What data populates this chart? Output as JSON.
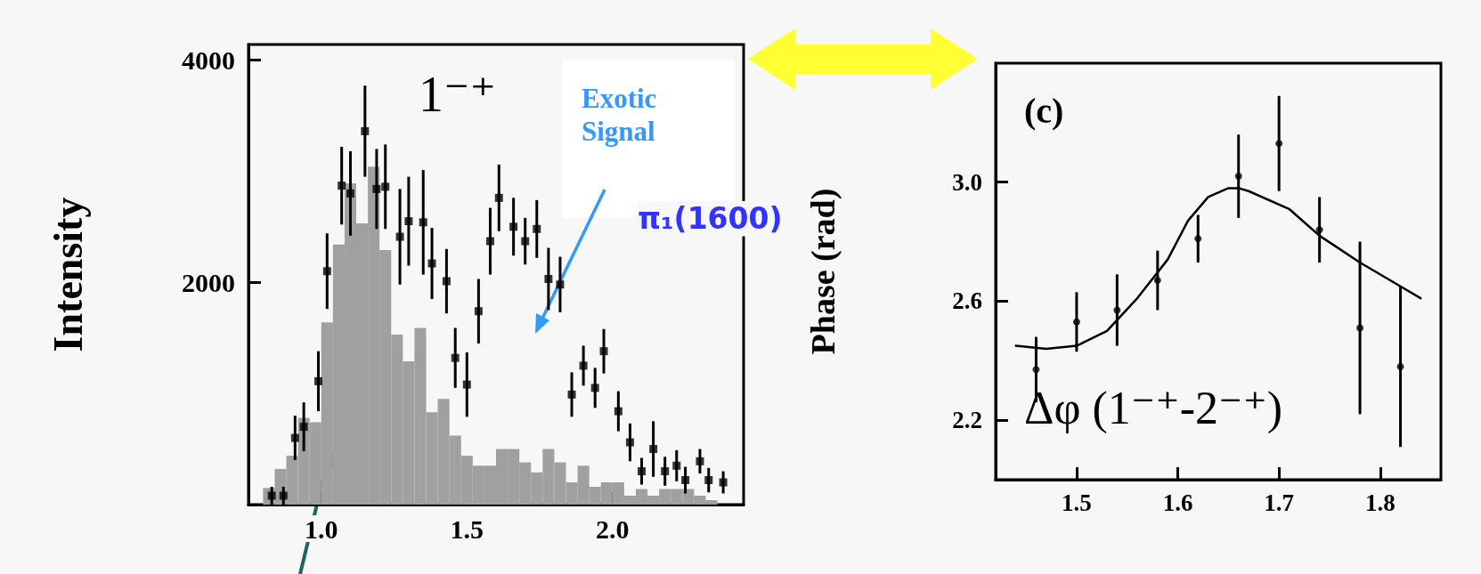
{
  "chart_data": [
    {
      "type": "histogram",
      "ylabel": "Intensity",
      "xlim": [
        0.75,
        2.45
      ],
      "ylim": [
        0,
        4140
      ],
      "xticks": [
        {
          "value": 1,
          "label": "1.0"
        },
        1.5,
        {
          "value": 2,
          "label": "2.0"
        }
      ],
      "yticks": [
        2000,
        4000
      ],
      "annotations": [
        "1⁻⁺",
        "Exotic Signal",
        "π₁(1600)"
      ],
      "series": [
        {
          "color": "#a0a0a0",
          "bins": [
            0.8,
            0.84,
            0.88,
            0.92,
            0.96,
            1.0,
            1.04,
            1.08,
            1.12,
            1.16,
            1.2,
            1.24,
            1.28,
            1.32,
            1.36,
            1.4,
            1.44,
            1.48,
            1.52,
            1.56,
            1.6,
            1.64,
            1.68,
            1.72,
            1.76,
            1.8,
            1.84,
            1.88,
            1.92,
            1.96,
            2.0,
            2.04,
            2.08,
            2.12,
            2.16,
            2.2,
            2.24,
            2.28,
            2.32,
            2.36
          ],
          "values": [
            150,
            320,
            440,
            780,
            740,
            1640,
            2340,
            2890,
            2530,
            3040,
            2290,
            1530,
            1290,
            1590,
            830,
            950,
            620,
            440,
            350,
            350,
            500,
            500,
            380,
            290,
            500,
            380,
            200,
            350,
            160,
            200,
            200,
            80,
            140,
            80,
            140,
            140,
            140,
            80,
            40
          ]
        },
        {
          "type": "scatter",
          "color": "#000000",
          "marker": "square",
          "x": [
            0.83,
            0.87,
            0.91,
            0.94,
            0.99,
            1.02,
            1.07,
            1.1,
            1.15,
            1.19,
            1.22,
            1.27,
            1.3,
            1.35,
            1.38,
            1.43,
            1.46,
            1.5,
            1.54,
            1.58,
            1.61,
            1.66,
            1.7,
            1.74,
            1.78,
            1.82,
            1.86,
            1.9,
            1.94,
            1.97,
            2.02,
            2.06,
            2.1,
            2.14,
            2.18,
            2.22,
            2.25,
            2.3,
            2.33,
            2.38
          ],
          "values": [
            80,
            80,
            600,
            700,
            1110,
            2100,
            2870,
            2800,
            3360,
            2840,
            2860,
            2410,
            2550,
            2540,
            2170,
            2010,
            1320,
            1080,
            1740,
            2370,
            2760,
            2500,
            2370,
            2480,
            2030,
            1980,
            990,
            1250,
            1050,
            1380,
            840,
            560,
            300,
            500,
            300,
            350,
            220,
            390,
            220,
            200
          ],
          "errors": [
            80,
            80,
            200,
            220,
            270,
            340,
            350,
            380,
            410,
            360,
            380,
            430,
            400,
            470,
            320,
            290,
            270,
            290,
            290,
            300,
            300,
            260,
            210,
            260,
            280,
            250,
            200,
            180,
            180,
            200,
            180,
            170,
            120,
            250,
            130,
            140,
            120,
            110,
            110,
            100
          ]
        }
      ]
    },
    {
      "type": "scatter",
      "ylabel": "Phase (rad)",
      "xlim": [
        1.42,
        1.86
      ],
      "ylim": [
        2.0,
        3.4
      ],
      "xticks": [
        1.5,
        1.6,
        1.7,
        1.8
      ],
      "yticks": [
        {
          "value": 2.2,
          "label": "2.2"
        },
        {
          "value": 2.6,
          "label": "2.6"
        },
        {
          "value": 3,
          "label": "3.0"
        }
      ],
      "annotations": [
        "(c)",
        "Δφ (1⁻⁺-2⁻⁺)"
      ],
      "series": [
        {
          "color": "#000000",
          "marker": "circle",
          "x": [
            1.46,
            1.5,
            1.54,
            1.58,
            1.62,
            1.66,
            1.7,
            1.74,
            1.78,
            1.82
          ],
          "values": [
            2.37,
            2.53,
            2.57,
            2.67,
            2.81,
            3.02,
            3.13,
            2.84,
            2.51,
            2.38
          ],
          "errors": [
            0.11,
            0.1,
            0.12,
            0.1,
            0.08,
            0.14,
            0.16,
            0.11,
            0.29,
            0.27
          ]
        },
        {
          "type": "line",
          "color": "#000000",
          "marker": "none",
          "line_style": "solid",
          "x": [
            1.44,
            1.47,
            1.5,
            1.53,
            1.56,
            1.59,
            1.61,
            1.63,
            1.65,
            1.66,
            1.67,
            1.71,
            1.74,
            1.78,
            1.82,
            1.84
          ],
          "values": [
            2.45,
            2.44,
            2.45,
            2.5,
            2.61,
            2.74,
            2.87,
            2.95,
            2.98,
            2.98,
            2.97,
            2.91,
            2.82,
            2.73,
            2.65,
            2.61
          ]
        }
      ]
    }
  ]
}
